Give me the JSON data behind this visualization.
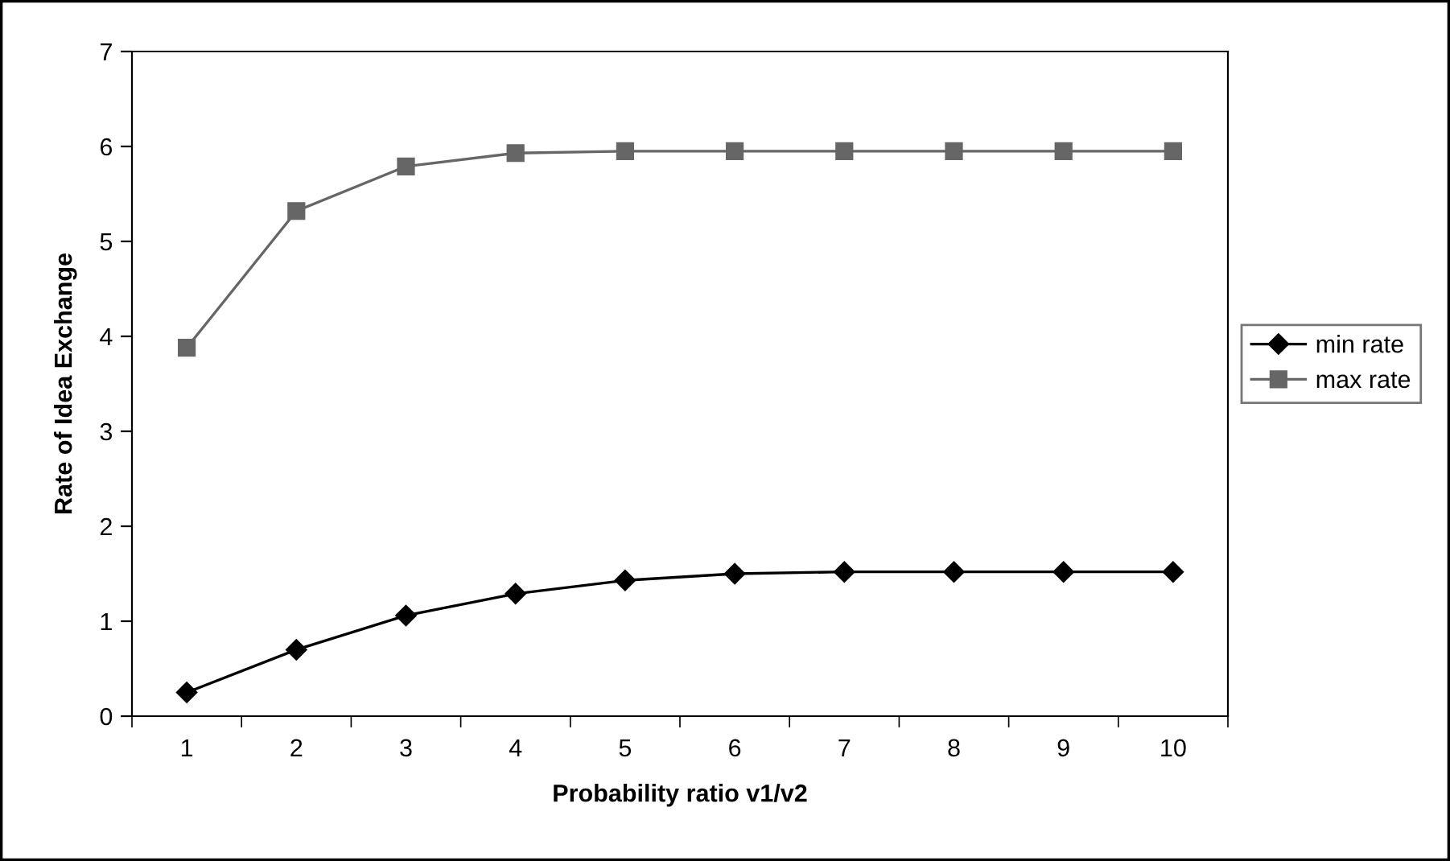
{
  "chart_data": {
    "type": "line",
    "xlabel": "Probability ratio v1/v2",
    "ylabel": "Rate of Idea Exchange",
    "categories": [
      "1",
      "2",
      "3",
      "4",
      "5",
      "6",
      "7",
      "8",
      "9",
      "10"
    ],
    "series": [
      {
        "name": "min rate",
        "color": "#000000",
        "marker": "diamond",
        "values": [
          0.25,
          0.7,
          1.06,
          1.29,
          1.43,
          1.5,
          1.52,
          1.52,
          1.52,
          1.52
        ]
      },
      {
        "name": "max rate",
        "color": "#666666",
        "marker": "square",
        "values": [
          3.88,
          5.32,
          5.79,
          5.93,
          5.95,
          5.95,
          5.95,
          5.95,
          5.95,
          5.95
        ]
      }
    ],
    "ylim": [
      0,
      7
    ],
    "yticks": [
      0,
      1,
      2,
      3,
      4,
      5,
      6,
      7
    ],
    "grid": false,
    "legend": "right",
    "line_style": "solid"
  }
}
